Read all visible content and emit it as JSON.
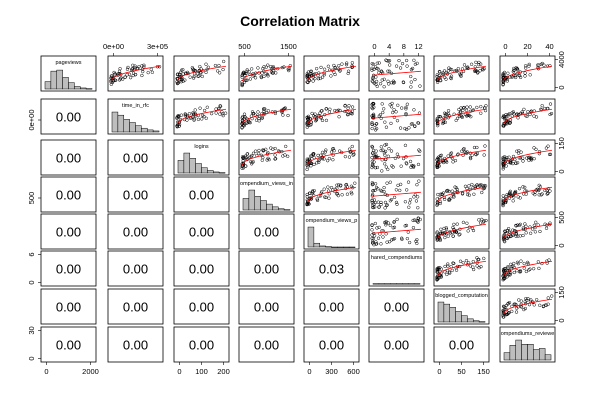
{
  "chart_data": {
    "type": "scatter",
    "title": "Correlation Matrix",
    "variables": [
      "pageviews",
      "time_in_rfc",
      "logins",
      "compendium_views_info",
      "compendium_views_pr",
      "shared_compendiums",
      "blogged_computations",
      "compendiums_reviewed"
    ],
    "variable_labels_shown": [
      "pageviews",
      "time_in_rfc",
      "logins",
      "ompendium_views_in",
      "ompendium_views_p",
      "hared_compendiums",
      "blogged_computation",
      "ompendiums_reviewe"
    ],
    "lower_triangle": [
      {
        "row": 2,
        "col": 1,
        "value": "0.00"
      },
      {
        "row": 3,
        "col": 1,
        "value": "0.00"
      },
      {
        "row": 3,
        "col": 2,
        "value": "0.00"
      },
      {
        "row": 4,
        "col": 1,
        "value": "0.00"
      },
      {
        "row": 4,
        "col": 2,
        "value": "0.00"
      },
      {
        "row": 4,
        "col": 3,
        "value": "0.00"
      },
      {
        "row": 5,
        "col": 1,
        "value": "0.00"
      },
      {
        "row": 5,
        "col": 2,
        "value": "0.00"
      },
      {
        "row": 5,
        "col": 3,
        "value": "0.00"
      },
      {
        "row": 5,
        "col": 4,
        "value": "0.00"
      },
      {
        "row": 6,
        "col": 1,
        "value": "0.00"
      },
      {
        "row": 6,
        "col": 2,
        "value": "0.00"
      },
      {
        "row": 6,
        "col": 3,
        "value": "0.00"
      },
      {
        "row": 6,
        "col": 4,
        "value": "0.00"
      },
      {
        "row": 6,
        "col": 5,
        "value": "0.03"
      },
      {
        "row": 7,
        "col": 1,
        "value": "0.00"
      },
      {
        "row": 7,
        "col": 2,
        "value": "0.00"
      },
      {
        "row": 7,
        "col": 3,
        "value": "0.00"
      },
      {
        "row": 7,
        "col": 4,
        "value": "0.00"
      },
      {
        "row": 7,
        "col": 5,
        "value": "0.00"
      },
      {
        "row": 7,
        "col": 6,
        "value": "0.00"
      },
      {
        "row": 8,
        "col": 1,
        "value": "0.00"
      },
      {
        "row": 8,
        "col": 2,
        "value": "0.00"
      },
      {
        "row": 8,
        "col": 3,
        "value": "0.00"
      },
      {
        "row": 8,
        "col": 4,
        "value": "0.00"
      },
      {
        "row": 8,
        "col": 5,
        "value": "0.00"
      },
      {
        "row": 8,
        "col": 6,
        "value": "0.00"
      },
      {
        "row": 8,
        "col": 7,
        "value": "0.00"
      }
    ],
    "histograms": [
      [
        0.35,
        0.85,
        0.9,
        0.55,
        0.3,
        0.12,
        0.05,
        0.02
      ],
      [
        0.95,
        0.8,
        0.6,
        0.45,
        0.3,
        0.18,
        0.1,
        0.05
      ],
      [
        0.6,
        0.95,
        0.7,
        0.45,
        0.25,
        0.12,
        0.05,
        0.02
      ],
      [
        0.55,
        0.95,
        0.65,
        0.45,
        0.28,
        0.15,
        0.06,
        0.02
      ],
      [
        0.95,
        0.18,
        0.05,
        0.02,
        0.0,
        0.0,
        0.0,
        0.0
      ],
      [
        0.02,
        0.02,
        0.02,
        0.02,
        0.02,
        0.02,
        0.02,
        0.02
      ],
      [
        0.95,
        0.85,
        0.7,
        0.5,
        0.3,
        0.15,
        0.06,
        0.02
      ],
      [
        0.35,
        0.7,
        0.95,
        0.75,
        0.75,
        0.5,
        0.55,
        0.25
      ]
    ],
    "ticks": {
      "top": [
        {
          "col": 2,
          "labels": [
            "0e+00",
            "3e+05"
          ]
        },
        {
          "col": 4,
          "labels": [
            "500",
            "1500"
          ]
        },
        {
          "col": 6,
          "labels": [
            "0",
            "4",
            "8",
            "12"
          ]
        },
        {
          "col": 8,
          "labels": [
            "0",
            "20",
            "40"
          ]
        }
      ],
      "bottom": [
        {
          "col": 1,
          "labels": [
            "0",
            "2000"
          ]
        },
        {
          "col": 3,
          "labels": [
            "0",
            "100",
            "200"
          ]
        },
        {
          "col": 5,
          "labels": [
            "0",
            "300",
            "600"
          ]
        },
        {
          "col": 7,
          "labels": [
            "0",
            "50",
            "150"
          ]
        }
      ],
      "left": [
        {
          "row": 2,
          "labels": [
            "0e+00"
          ]
        },
        {
          "row": 4,
          "labels": [
            "500"
          ]
        },
        {
          "row": 6,
          "labels": [
            "0",
            "6"
          ]
        },
        {
          "row": 8,
          "labels": [
            "0",
            "30"
          ]
        }
      ],
      "right": [
        {
          "row": 1,
          "labels": [
            "0",
            "4000"
          ]
        },
        {
          "row": 3,
          "labels": [
            "0",
            "150"
          ]
        },
        {
          "row": 5,
          "labels": [
            "0",
            "500"
          ]
        },
        {
          "row": 7,
          "labels": [
            "0",
            "150"
          ]
        }
      ]
    },
    "colors": {
      "points": "#000000",
      "smooth_line": "#ff0000",
      "hist_fill": "#bebebe",
      "frame": "#000000"
    },
    "grid": false,
    "legend": "none"
  }
}
